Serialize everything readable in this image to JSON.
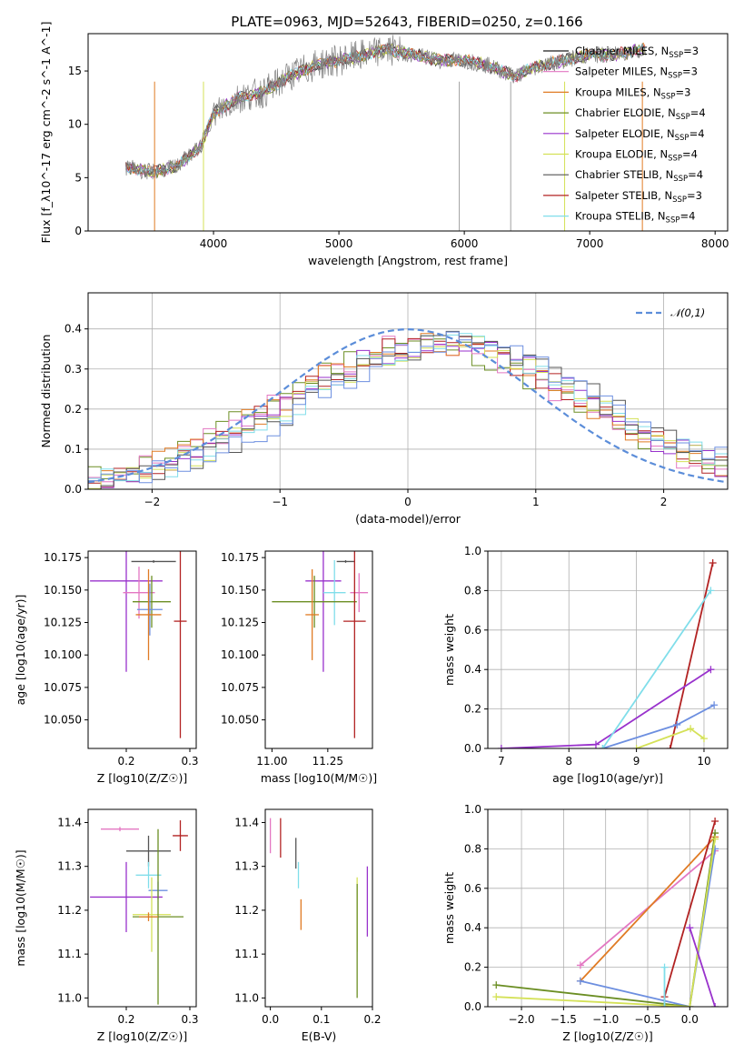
{
  "title": "PLATE=0963, MJD=52643, FIBERID=0250, z=0.166",
  "colors": [
    "#1f1f1f",
    "#e377c2",
    "#7f7f7f",
    "#6b8e23",
    "#9932cc",
    "#d4e157",
    "#555555",
    "#b22222",
    "#80deea",
    "#ff7f0e",
    "#6d8fe0",
    "#e07b24"
  ],
  "chart_data": [
    {
      "id": "spectrum",
      "type": "line",
      "xlabel": "wavelength [Angstrom, rest frame]",
      "ylabel": "Flux [f_λ10^-17 erg cm^-2 s^-1 A^-1]",
      "xlim": [
        3000,
        8100
      ],
      "ylim": [
        0,
        18.5
      ],
      "xticks": [
        4000,
        5000,
        6000,
        7000,
        8000
      ],
      "yticks": [
        0,
        5,
        10,
        15
      ],
      "grid": false,
      "legend_position": "right",
      "x": [
        3300,
        3500,
        3700,
        3900,
        4000,
        4200,
        4400,
        4600,
        4800,
        5000,
        5200,
        5400,
        5600,
        5800,
        6000,
        6200,
        6400,
        6600,
        6800,
        7000,
        7200,
        7400
      ],
      "data_flux": [
        6.0,
        5.5,
        6.0,
        8.0,
        11.0,
        12.5,
        13.0,
        14.5,
        15.5,
        16.0,
        16.5,
        17.0,
        16.5,
        16.0,
        16.0,
        15.5,
        14.5,
        15.5,
        16.0,
        16.5,
        16.5,
        17.0
      ],
      "series": [
        {
          "name": "Chabrier MILES, N_SSP=3",
          "color": "#1f1f1f"
        },
        {
          "name": "Salpeter MILES, N_SSP=3",
          "color": "#e377c2"
        },
        {
          "name": "Kroupa MILES, N_SSP=3",
          "color": "#e07b24"
        },
        {
          "name": "Chabrier ELODIE, N_SSP=4",
          "color": "#6b8e23"
        },
        {
          "name": "Salpeter ELODIE, N_SSP=4",
          "color": "#9932cc"
        },
        {
          "name": "Kroupa ELODIE, N_SSP=4",
          "color": "#d4e157"
        },
        {
          "name": "Chabrier STELIB, N_SSP=4",
          "color": "#555555"
        },
        {
          "name": "Salpeter STELIB, N_SSP=3",
          "color": "#b22222"
        },
        {
          "name": "Kroupa STELIB, N_SSP=4",
          "color": "#80deea"
        }
      ]
    },
    {
      "id": "residuals",
      "type": "line",
      "xlabel": "(data-model)/error",
      "ylabel": "Normed distribution",
      "xlim": [
        -2.5,
        2.5
      ],
      "ylim": [
        0,
        0.49
      ],
      "xticks": [
        -2,
        -1,
        0,
        1,
        2
      ],
      "yticks": [
        0.0,
        0.1,
        0.2,
        0.3,
        0.4
      ],
      "grid": true,
      "legend_position": "top-right",
      "gaussian_label": "𝒩(0,1)",
      "gaussian_color": "#5b8dd9"
    },
    {
      "id": "age_vs_Z",
      "type": "scatter",
      "xlabel": "Z [log10(Z/Z☉)]",
      "ylabel": "age [log10(age/yr)]",
      "xlim": [
        0.14,
        0.31
      ],
      "ylim": [
        10.028,
        10.18
      ],
      "xticks": [
        0.2,
        0.3
      ],
      "yticks": [
        10.05,
        10.075,
        10.1,
        10.125,
        10.15,
        10.175
      ],
      "points": [
        {
          "x": 0.243,
          "y": 10.172,
          "xerr": 0.035,
          "yerr": 0.001,
          "color": "#555555"
        },
        {
          "x": 0.2,
          "y": 10.157,
          "xerr": 0.057,
          "yerr": 0.07,
          "color": "#9932cc"
        },
        {
          "x": 0.22,
          "y": 10.148,
          "xerr": 0.025,
          "yerr": 0.02,
          "color": "#e377c2"
        },
        {
          "x": 0.24,
          "y": 10.141,
          "xerr": 0.03,
          "yerr": 0.02,
          "color": "#6b8e23"
        },
        {
          "x": 0.237,
          "y": 10.135,
          "xerr": 0.02,
          "yerr": 0.02,
          "color": "#6d8fe0"
        },
        {
          "x": 0.235,
          "y": 10.131,
          "xerr": 0.02,
          "yerr": 0.035,
          "color": "#e07b24"
        },
        {
          "x": 0.285,
          "y": 10.126,
          "xerr": 0.01,
          "yerr": 0.09,
          "color": "#b22222"
        }
      ]
    },
    {
      "id": "age_vs_mass",
      "type": "scatter",
      "xlabel": "mass [log10(M/M☉)]",
      "xlim": [
        10.97,
        11.45
      ],
      "ylim": [
        10.028,
        10.18
      ],
      "xticks": [
        11.0,
        11.25
      ],
      "yticks": [
        10.05,
        10.075,
        10.1,
        10.125,
        10.15,
        10.175
      ],
      "points": [
        {
          "x": 11.33,
          "y": 10.172,
          "xerr": 0.04,
          "yerr": 0.001,
          "color": "#555555"
        },
        {
          "x": 11.23,
          "y": 10.157,
          "xerr": 0.08,
          "yerr": 0.07,
          "color": "#9932cc"
        },
        {
          "x": 11.39,
          "y": 10.148,
          "xerr": 0.04,
          "yerr": 0.015,
          "color": "#e377c2"
        },
        {
          "x": 11.28,
          "y": 10.148,
          "xerr": 0.05,
          "yerr": 0.025,
          "color": "#80deea"
        },
        {
          "x": 11.19,
          "y": 10.141,
          "xerr": 0.19,
          "yerr": 0.02,
          "color": "#6b8e23"
        },
        {
          "x": 11.18,
          "y": 10.131,
          "xerr": 0.03,
          "yerr": 0.035,
          "color": "#e07b24"
        },
        {
          "x": 11.37,
          "y": 10.126,
          "xerr": 0.05,
          "yerr": 0.09,
          "color": "#b22222"
        }
      ]
    },
    {
      "id": "weight_vs_age",
      "type": "line",
      "xlabel": "age  [log10(age/yr)]",
      "ylabel": "mass weight",
      "xlim": [
        6.8,
        10.35
      ],
      "ylim": [
        0,
        1
      ],
      "xticks": [
        7,
        8,
        9,
        10
      ],
      "yticks": [
        0.0,
        0.2,
        0.4,
        0.6,
        0.8,
        1.0
      ],
      "grid": true,
      "series": [
        {
          "color": "#b22222",
          "x": [
            9.5,
            10.13
          ],
          "y": [
            0.0,
            0.94
          ]
        },
        {
          "color": "#9932cc",
          "x": [
            7.0,
            8.4,
            10.1
          ],
          "y": [
            0.0,
            0.02,
            0.4
          ]
        },
        {
          "color": "#6d8fe0",
          "x": [
            8.5,
            9.6,
            10.15
          ],
          "y": [
            0.0,
            0.12,
            0.22
          ]
        },
        {
          "color": "#80deea",
          "x": [
            8.5,
            10.1
          ],
          "y": [
            0.0,
            0.8
          ]
        },
        {
          "color": "#d4e157",
          "x": [
            9.0,
            9.8,
            10.0
          ],
          "y": [
            0.0,
            0.1,
            0.05
          ]
        }
      ]
    },
    {
      "id": "mass_vs_Z",
      "type": "scatter",
      "xlabel": "Z [log10(Z/Z☉)]",
      "ylabel": "mass [log10(M/M☉)]",
      "xlim": [
        0.14,
        0.31
      ],
      "ylim": [
        10.98,
        11.43
      ],
      "xticks": [
        0.2,
        0.3
      ],
      "yticks": [
        11.0,
        11.1,
        11.2,
        11.3,
        11.4
      ],
      "points": [
        {
          "x": 0.285,
          "y": 11.37,
          "xerr": 0.012,
          "yerr": 0.035,
          "color": "#b22222"
        },
        {
          "x": 0.19,
          "y": 11.385,
          "xerr": 0.03,
          "yerr": 0.005,
          "color": "#e377c2"
        },
        {
          "x": 0.235,
          "y": 11.335,
          "xerr": 0.035,
          "yerr": 0.035,
          "color": "#555555"
        },
        {
          "x": 0.235,
          "y": 11.28,
          "xerr": 0.02,
          "yerr": 0.03,
          "color": "#80deea"
        },
        {
          "x": 0.25,
          "y": 11.245,
          "xerr": 0.015,
          "yerr": 0.02,
          "color": "#6d8fe0"
        },
        {
          "x": 0.2,
          "y": 11.23,
          "xerr": 0.057,
          "yerr": 0.08,
          "color": "#9932cc"
        },
        {
          "x": 0.24,
          "y": 11.19,
          "xerr": 0.03,
          "yerr": 0.085,
          "color": "#d4e157"
        },
        {
          "x": 0.25,
          "y": 11.185,
          "xerr": 0.04,
          "yerr": 0.2,
          "color": "#6b8e23"
        },
        {
          "x": 0.235,
          "y": 11.185,
          "xerr": 0.015,
          "yerr": 0.01,
          "color": "#e07b24"
        }
      ]
    },
    {
      "id": "mass_vs_ebv",
      "type": "scatter",
      "xlabel": "E(B-V)",
      "xlim": [
        -0.01,
        0.2
      ],
      "ylim": [
        10.98,
        11.43
      ],
      "xticks": [
        0.0,
        0.1,
        0.2
      ],
      "yticks": [
        11.0,
        11.1,
        11.2,
        11.3,
        11.4
      ],
      "points": [
        {
          "x": 0.0,
          "y": 11.37,
          "xerr": 0.0,
          "yerr": 0.04,
          "color": "#e377c2"
        },
        {
          "x": 0.02,
          "y": 11.365,
          "xerr": 0.0,
          "yerr": 0.045,
          "color": "#b22222"
        },
        {
          "x": 0.05,
          "y": 11.33,
          "xerr": 0.0,
          "yerr": 0.035,
          "color": "#555555"
        },
        {
          "x": 0.055,
          "y": 11.28,
          "xerr": 0.0,
          "yerr": 0.03,
          "color": "#80deea"
        },
        {
          "x": 0.06,
          "y": 11.19,
          "xerr": 0.0,
          "yerr": 0.035,
          "color": "#e07b24"
        },
        {
          "x": 0.17,
          "y": 11.19,
          "xerr": 0.0,
          "yerr": 0.085,
          "color": "#d4e157"
        },
        {
          "x": 0.17,
          "y": 11.13,
          "xerr": 0.0,
          "yerr": 0.13,
          "color": "#6b8e23"
        },
        {
          "x": 0.19,
          "y": 11.22,
          "xerr": 0.0,
          "yerr": 0.08,
          "color": "#9932cc"
        }
      ]
    },
    {
      "id": "weight_vs_Z",
      "type": "line",
      "xlabel": "Z [log10(Z/Z☉)]",
      "ylabel": "mass weight",
      "xlim": [
        -2.4,
        0.45
      ],
      "ylim": [
        0,
        1
      ],
      "xticks": [
        -2.0,
        -1.5,
        -1.0,
        -0.5,
        0.0
      ],
      "yticks": [
        0.0,
        0.2,
        0.4,
        0.6,
        0.8,
        1.0
      ],
      "grid": true,
      "series": [
        {
          "color": "#e377c2",
          "x": [
            -1.3,
            0.3
          ],
          "y": [
            0.21,
            0.79
          ]
        },
        {
          "color": "#e07b24",
          "x": [
            -1.3,
            0.3
          ],
          "y": [
            0.13,
            0.86
          ]
        },
        {
          "color": "#6d8fe0",
          "x": [
            -1.3,
            0.0,
            0.3
          ],
          "y": [
            0.13,
            0.0,
            0.8
          ]
        },
        {
          "color": "#6b8e23",
          "x": [
            -2.3,
            0.0,
            0.3
          ],
          "y": [
            0.11,
            0.0,
            0.88
          ]
        },
        {
          "color": "#d4e157",
          "x": [
            -2.3,
            0.0,
            0.3
          ],
          "y": [
            0.05,
            0.0,
            0.85
          ]
        },
        {
          "color": "#b22222",
          "x": [
            -0.3,
            -0.3,
            0.3
          ],
          "y": [
            0.0,
            0.05,
            0.94
          ]
        },
        {
          "color": "#9932cc",
          "x": [
            0.0,
            0.3
          ],
          "y": [
            0.4,
            0.0
          ]
        },
        {
          "color": "#80deea",
          "x": [
            -0.3,
            -0.3
          ],
          "y": [
            0.0,
            0.2
          ]
        }
      ]
    }
  ]
}
